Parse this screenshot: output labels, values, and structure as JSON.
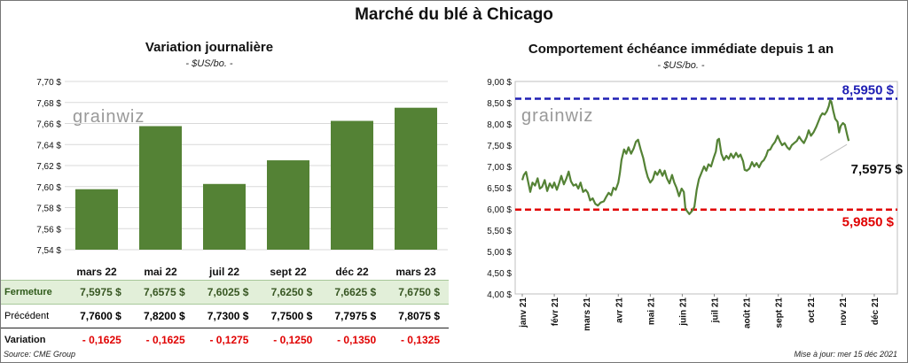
{
  "main_title": "Marché du blé à Chicago",
  "brand": "grainwiz",
  "colors": {
    "bar": "#548235",
    "line": "#548235",
    "high": "#1f1fb4",
    "low": "#e00000",
    "closeRow": "#e2efd9"
  },
  "source": "Source: CME Group",
  "update": "Mise à jour: mer 15 déc 2021",
  "chart_data": [
    {
      "type": "bar",
      "title": "Variation journalière",
      "subtitle": "- $US/bo. -",
      "categories": [
        "mars 22",
        "mai 22",
        "juil 22",
        "sept 22",
        "déc 22",
        "mars 23"
      ],
      "values": [
        7.5975,
        7.6575,
        7.6025,
        7.625,
        7.6625,
        7.675
      ],
      "ylim": [
        7.54,
        7.7
      ],
      "yticks": [
        "7,54 $",
        "7,56 $",
        "7,58 $",
        "7,60 $",
        "7,62 $",
        "7,64 $",
        "7,66 $",
        "7,68 $",
        "7,70 $"
      ],
      "table": {
        "rows": [
          {
            "label": "Fermeture",
            "values": [
              "7,5975  $",
              "7,6575  $",
              "7,6025  $",
              "7,6250  $",
              "7,6625  $",
              "7,6750  $"
            ]
          },
          {
            "label": "Précédent",
            "values": [
              "7,7600  $",
              "7,8200  $",
              "7,7300  $",
              "7,7500  $",
              "7,7975  $",
              "7,8075  $"
            ]
          },
          {
            "label": "Variation",
            "values": [
              "- 0,1625",
              "- 0,1625",
              "- 0,1275",
              "- 0,1250",
              "- 0,1350",
              "- 0,1325"
            ]
          }
        ]
      }
    },
    {
      "type": "line",
      "title": "Comportement  échéance immédiate depuis 1 an",
      "subtitle": "- $US/bo. -",
      "ylim": [
        4.0,
        9.0
      ],
      "yticks": [
        "4,00 $",
        "4,50 $",
        "5,00 $",
        "5,50 $",
        "6,00 $",
        "6,50 $",
        "7,00 $",
        "7,50 $",
        "8,00 $",
        "8,50 $",
        "9,00 $"
      ],
      "xticks": [
        "janv 21",
        "févr 21",
        "mars 21",
        "avr 21",
        "mai 21",
        "juin 21",
        "juil 21",
        "août 21",
        "sept 21",
        "oct 21",
        "nov 21",
        "déc 21"
      ],
      "xrange": [
        0,
        11.5
      ],
      "series": [
        {
          "points": [
            [
              0.0,
              6.68
            ],
            [
              0.05,
              6.8
            ],
            [
              0.12,
              6.87
            ],
            [
              0.2,
              6.58
            ],
            [
              0.25,
              6.4
            ],
            [
              0.32,
              6.62
            ],
            [
              0.4,
              6.55
            ],
            [
              0.48,
              6.72
            ],
            [
              0.55,
              6.48
            ],
            [
              0.62,
              6.52
            ],
            [
              0.7,
              6.68
            ],
            [
              0.78,
              6.42
            ],
            [
              0.86,
              6.6
            ],
            [
              0.94,
              6.5
            ],
            [
              1.0,
              6.62
            ],
            [
              1.08,
              6.45
            ],
            [
              1.15,
              6.6
            ],
            [
              1.22,
              6.78
            ],
            [
              1.3,
              6.58
            ],
            [
              1.38,
              6.72
            ],
            [
              1.45,
              6.88
            ],
            [
              1.52,
              6.65
            ],
            [
              1.6,
              6.55
            ],
            [
              1.68,
              6.58
            ],
            [
              1.75,
              6.48
            ],
            [
              1.82,
              6.62
            ],
            [
              1.9,
              6.4
            ],
            [
              1.98,
              6.45
            ],
            [
              2.05,
              6.38
            ],
            [
              2.12,
              6.2
            ],
            [
              2.2,
              6.25
            ],
            [
              2.28,
              6.12
            ],
            [
              2.36,
              6.08
            ],
            [
              2.45,
              6.15
            ],
            [
              2.55,
              6.18
            ],
            [
              2.62,
              6.28
            ],
            [
              2.7,
              6.38
            ],
            [
              2.78,
              6.32
            ],
            [
              2.85,
              6.5
            ],
            [
              2.92,
              6.45
            ],
            [
              3.0,
              6.62
            ],
            [
              3.05,
              6.85
            ],
            [
              3.1,
              7.15
            ],
            [
              3.18,
              7.4
            ],
            [
              3.25,
              7.3
            ],
            [
              3.32,
              7.45
            ],
            [
              3.4,
              7.3
            ],
            [
              3.48,
              7.42
            ],
            [
              3.55,
              7.58
            ],
            [
              3.62,
              7.63
            ],
            [
              3.7,
              7.4
            ],
            [
              3.78,
              7.2
            ],
            [
              3.85,
              6.95
            ],
            [
              3.92,
              6.75
            ],
            [
              4.0,
              6.62
            ],
            [
              4.08,
              6.7
            ],
            [
              4.15,
              6.88
            ],
            [
              4.22,
              6.8
            ],
            [
              4.3,
              6.92
            ],
            [
              4.38,
              6.78
            ],
            [
              4.45,
              6.9
            ],
            [
              4.52,
              6.72
            ],
            [
              4.6,
              6.6
            ],
            [
              4.68,
              6.8
            ],
            [
              4.75,
              6.62
            ],
            [
              4.82,
              6.5
            ],
            [
              4.9,
              6.3
            ],
            [
              4.98,
              6.48
            ],
            [
              5.05,
              6.4
            ],
            [
              5.1,
              6.0
            ],
            [
              5.15,
              5.95
            ],
            [
              5.22,
              5.88
            ],
            [
              5.3,
              5.95
            ],
            [
              5.38,
              6.05
            ],
            [
              5.45,
              6.45
            ],
            [
              5.52,
              6.7
            ],
            [
              5.6,
              6.85
            ],
            [
              5.68,
              7.0
            ],
            [
              5.75,
              6.9
            ],
            [
              5.82,
              7.05
            ],
            [
              5.9,
              7.0
            ],
            [
              5.98,
              7.2
            ],
            [
              6.05,
              7.35
            ],
            [
              6.1,
              7.62
            ],
            [
              6.15,
              7.65
            ],
            [
              6.22,
              7.3
            ],
            [
              6.3,
              7.15
            ],
            [
              6.38,
              7.25
            ],
            [
              6.45,
              7.18
            ],
            [
              6.52,
              7.3
            ],
            [
              6.6,
              7.2
            ],
            [
              6.68,
              7.32
            ],
            [
              6.75,
              7.22
            ],
            [
              6.82,
              7.28
            ],
            [
              6.9,
              7.12
            ],
            [
              6.95,
              6.92
            ],
            [
              7.02,
              6.9
            ],
            [
              7.1,
              6.95
            ],
            [
              7.18,
              7.1
            ],
            [
              7.25,
              7.0
            ],
            [
              7.32,
              7.08
            ],
            [
              7.4,
              6.98
            ],
            [
              7.48,
              7.1
            ],
            [
              7.55,
              7.15
            ],
            [
              7.62,
              7.25
            ],
            [
              7.68,
              7.38
            ],
            [
              7.75,
              7.4
            ],
            [
              7.82,
              7.5
            ],
            [
              7.9,
              7.58
            ],
            [
              7.98,
              7.72
            ],
            [
              8.05,
              7.6
            ],
            [
              8.12,
              7.5
            ],
            [
              8.2,
              7.55
            ],
            [
              8.28,
              7.45
            ],
            [
              8.35,
              7.4
            ],
            [
              8.42,
              7.5
            ],
            [
              8.5,
              7.55
            ],
            [
              8.58,
              7.6
            ],
            [
              8.65,
              7.7
            ],
            [
              8.72,
              7.62
            ],
            [
              8.8,
              7.55
            ],
            [
              8.88,
              7.68
            ],
            [
              8.95,
              7.85
            ],
            [
              9.02,
              7.72
            ],
            [
              9.1,
              7.8
            ],
            [
              9.18,
              7.92
            ],
            [
              9.25,
              8.05
            ],
            [
              9.32,
              8.18
            ],
            [
              9.38,
              8.25
            ],
            [
              9.45,
              8.22
            ],
            [
              9.52,
              8.3
            ],
            [
              9.58,
              8.42
            ],
            [
              9.62,
              8.56
            ],
            [
              9.66,
              8.52
            ],
            [
              9.72,
              8.3
            ],
            [
              9.78,
              8.12
            ],
            [
              9.85,
              8.05
            ],
            [
              9.9,
              7.8
            ],
            [
              9.95,
              7.95
            ],
            [
              10.02,
              8.02
            ],
            [
              10.08,
              7.98
            ],
            [
              10.15,
              7.75
            ],
            [
              10.2,
              7.6
            ]
          ]
        }
      ],
      "hlines": [
        {
          "value": 8.595,
          "label": "8,5950  $",
          "color": "#1f1fb4"
        },
        {
          "value": 5.985,
          "label": "5,9850  $",
          "color": "#e00000"
        }
      ],
      "last_label": "7,5975 $"
    }
  ]
}
